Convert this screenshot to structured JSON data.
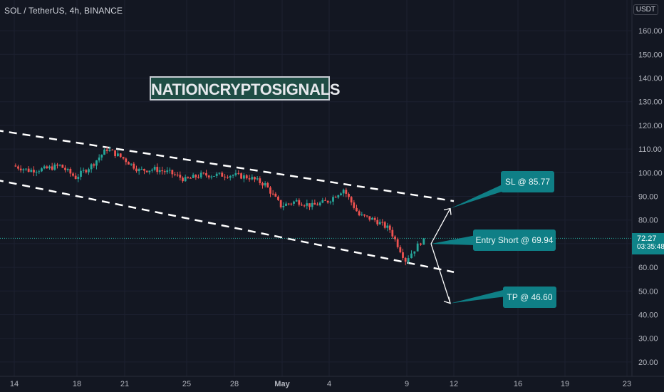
{
  "header": {
    "symbol": "SOL / TetherUS, 4h, BINANCE",
    "currency": "USDT"
  },
  "watermark": "NATIONCRYPTOSIGNALS",
  "last_price": {
    "value": "72.27",
    "countdown": "03:35:48"
  },
  "callouts": {
    "sl": "SL @ 85.77",
    "entry": "Entry Short @ 69.94",
    "tp": "TP @ 46.60"
  },
  "colors": {
    "background": "#131722",
    "up": "#26a69a",
    "down": "#ef5350",
    "callout": "#0f7f86",
    "channel": "#ffffff"
  },
  "chart_data": {
    "type": "candlestick",
    "title": "SOL / TetherUS, 4h, BINANCE",
    "ylim": [
      17,
      170
    ],
    "y_ticks": [
      "160.00",
      "150.00",
      "140.00",
      "130.00",
      "120.00",
      "110.00",
      "100.00",
      "90.00",
      "80.00",
      "70.00",
      "60.00",
      "50.00",
      "40.00",
      "30.00",
      "20.00"
    ],
    "x_ticks": [
      "14",
      "18",
      "21",
      "25",
      "28",
      "May",
      "4",
      "9",
      "12",
      "16",
      "19",
      "23"
    ],
    "approx_close_series": [
      {
        "x": "14",
        "close": 103
      },
      {
        "x": "15",
        "close": 101
      },
      {
        "x": "16",
        "close": 101.5
      },
      {
        "x": "17",
        "close": 103
      },
      {
        "x": "18",
        "close": 98
      },
      {
        "x": "19",
        "close": 103
      },
      {
        "x": "20",
        "close": 110
      },
      {
        "x": "21",
        "close": 106
      },
      {
        "x": "22",
        "close": 101
      },
      {
        "x": "23",
        "close": 101.5
      },
      {
        "x": "24",
        "close": 100
      },
      {
        "x": "25",
        "close": 97
      },
      {
        "x": "26",
        "close": 99
      },
      {
        "x": "27",
        "close": 99
      },
      {
        "x": "28",
        "close": 99
      },
      {
        "x": "29",
        "close": 98
      },
      {
        "x": "30",
        "close": 95
      },
      {
        "x": "May",
        "close": 86
      },
      {
        "x": "2",
        "close": 88
      },
      {
        "x": "3",
        "close": 86
      },
      {
        "x": "4",
        "close": 88
      },
      {
        "x": "5",
        "close": 93
      },
      {
        "x": "6",
        "close": 82
      },
      {
        "x": "7",
        "close": 80
      },
      {
        "x": "8",
        "close": 76
      },
      {
        "x": "9",
        "close": 63
      },
      {
        "x": "10",
        "close": 72.27
      }
    ],
    "channel": {
      "upper": [
        {
          "x": "13",
          "y": 118
        },
        {
          "x": "11",
          "y": 88
        }
      ],
      "lower": [
        {
          "x": "13",
          "y": 97
        },
        {
          "x": "11",
          "y": 58
        }
      ]
    },
    "levels": {
      "sl": 85.77,
      "entry": 69.94,
      "tp": 46.6,
      "last": 72.27
    }
  }
}
